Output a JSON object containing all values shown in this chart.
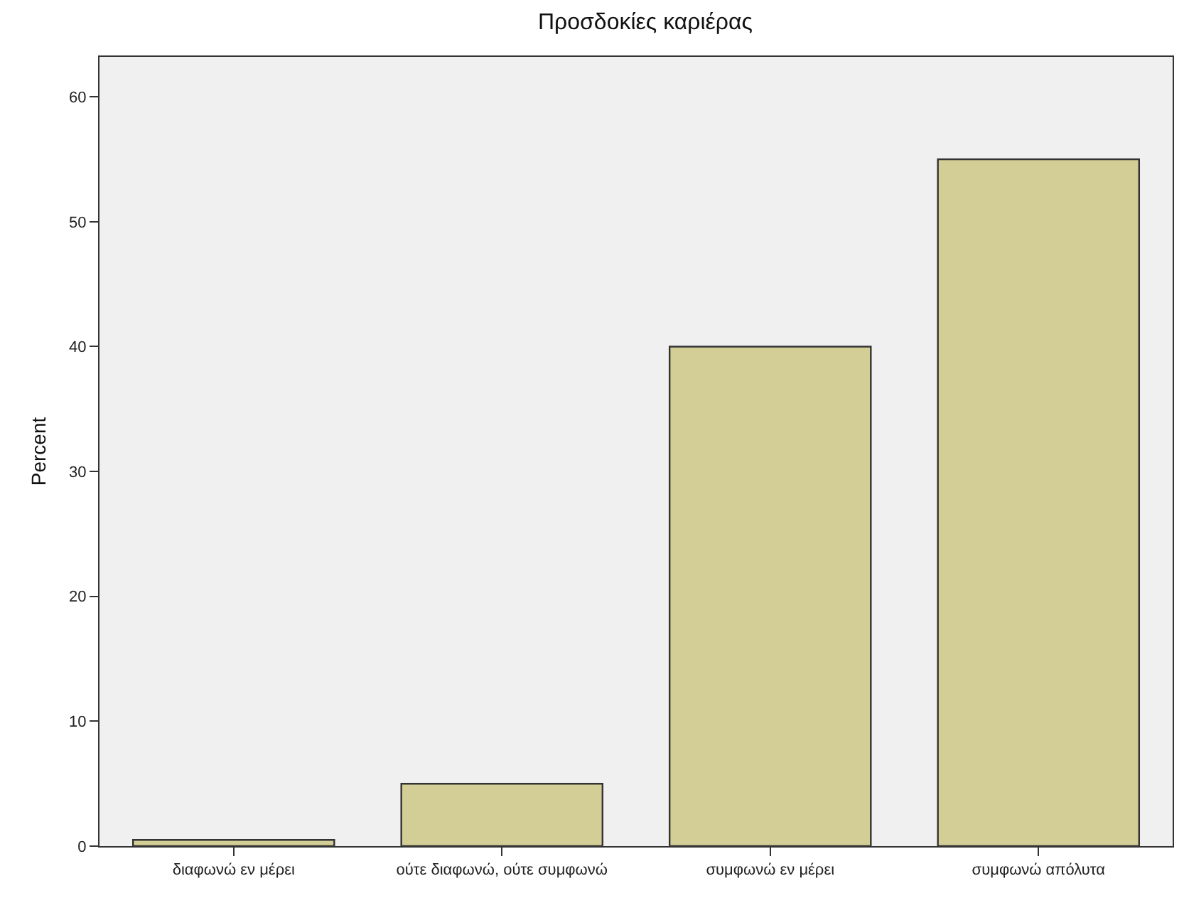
{
  "chart_data": {
    "type": "bar",
    "title": "Προσδοκίες καριέρας",
    "ylabel": "Percent",
    "categories": [
      "διαφωνώ εν μέρει",
      "ούτε διαφωνώ, ούτε συμφωνώ",
      "συμφωνώ εν μέρει",
      "συμφωνώ απόλυτα"
    ],
    "values": [
      0.5,
      5,
      40,
      55
    ],
    "color": "#d3cd96",
    "ylim": [
      0,
      63.2
    ],
    "yticks": [
      0,
      10,
      20,
      30,
      40,
      50,
      60
    ],
    "grid": false,
    "legend": false
  }
}
